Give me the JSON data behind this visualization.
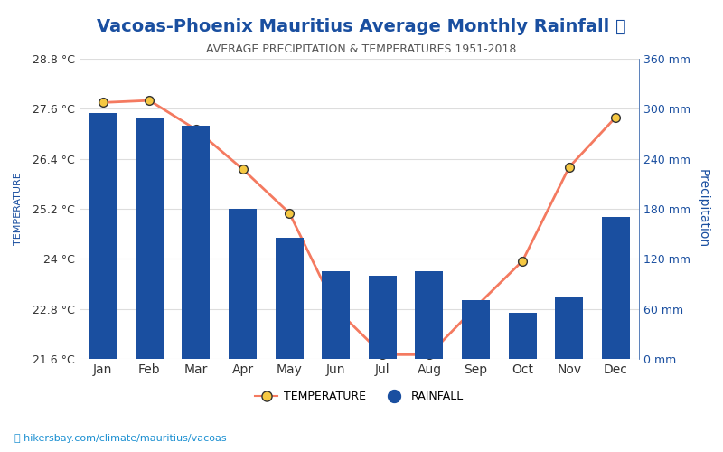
{
  "title": "Vacoas-Phoenix Mauritius Average Monthly Rainfall 🌧",
  "subtitle": "AVERAGE PRECIPITATION & TEMPERATURES 1951-2018",
  "months": [
    "Jan",
    "Feb",
    "Mar",
    "Apr",
    "May",
    "Jun",
    "Jul",
    "Aug",
    "Sep",
    "Oct",
    "Nov",
    "Dec"
  ],
  "rainfall_mm": [
    295,
    290,
    280,
    180,
    145,
    105,
    100,
    105,
    70,
    55,
    75,
    170
  ],
  "temperature_c": [
    27.75,
    27.8,
    27.1,
    26.15,
    25.1,
    22.8,
    21.7,
    21.7,
    22.85,
    23.95,
    26.2,
    27.4
  ],
  "temp_ylim": [
    21.6,
    28.8
  ],
  "rain_ylim": [
    0,
    360
  ],
  "temp_yticks": [
    21.6,
    22.8,
    24.0,
    25.2,
    26.4,
    27.6,
    28.8
  ],
  "rain_yticks": [
    0,
    60,
    120,
    180,
    240,
    300,
    360
  ],
  "rain_ytick_labels": [
    "0 mm",
    "60 mm",
    "120 mm",
    "180 mm",
    "240 mm",
    "300 mm",
    "360 mm"
  ],
  "temp_ytick_labels": [
    "21.6 °C",
    "22.8 °C",
    "24 °C",
    "25.2 °C",
    "26.4 °C",
    "27.6 °C",
    "28.8 °C"
  ],
  "bar_color": "#1a4fa0",
  "line_color": "#f47a60",
  "marker_face": "#f5c842",
  "marker_edge": "#333333",
  "title_color": "#1a4fa0",
  "subtitle_color": "#555555",
  "axis_label_color": "#1a4fa0",
  "tick_color_right": "#1a4fa0",
  "tick_color_left": "#333333",
  "ylabel_left": "TEMPERATURE",
  "ylabel_right": "Precipitation",
  "watermark": "hikersbay.com/climate/mauritius/vacoas",
  "background_color": "#ffffff",
  "grid_color": "#dddddd"
}
